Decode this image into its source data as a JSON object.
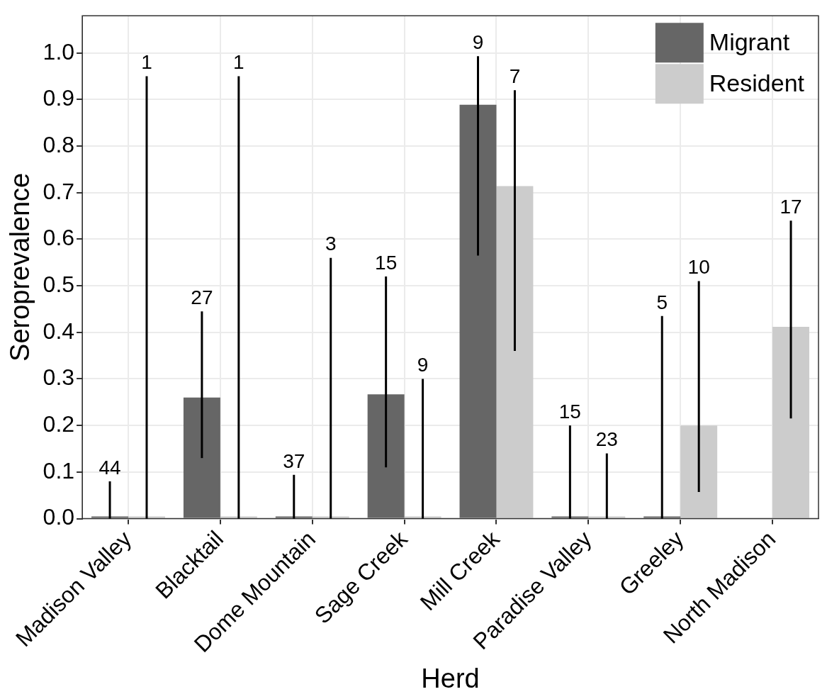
{
  "chart_data": {
    "type": "bar",
    "xlabel": "Herd",
    "ylabel": "Seroprevalence",
    "categories": [
      "Madison Valley",
      "Blacktail",
      "Dome Mountain",
      "Sage Creek",
      "Mill Creek",
      "Paradise Valley",
      "Greeley",
      "North Madison"
    ],
    "series": [
      {
        "name": "Migrant",
        "color": "#666666",
        "values": [
          0,
          0.26,
          0,
          0.267,
          0.889,
          0,
          0,
          null
        ],
        "errors": [
          [
            0,
            0.08
          ],
          [
            0.13,
            0.445
          ],
          [
            0,
            0.094
          ],
          [
            0.11,
            0.52
          ],
          [
            0.565,
            0.993
          ],
          [
            0,
            0.2
          ],
          [
            0,
            0.435
          ],
          null
        ]
      },
      {
        "name": "Resident",
        "color": "#cccccc",
        "values": [
          0,
          0,
          0,
          0,
          0.714,
          0,
          0.2,
          0.412
        ],
        "errors": [
          [
            0,
            0.95
          ],
          [
            0,
            0.95
          ],
          [
            0,
            0.56
          ],
          [
            0,
            0.3
          ],
          [
            0.36,
            0.92
          ],
          [
            0,
            0.14
          ],
          [
            0.057,
            0.51
          ],
          [
            0.215,
            0.64
          ]
        ]
      }
    ],
    "annotations": [
      "44",
      "1",
      "27",
      "1",
      "37",
      "3",
      "15",
      "9",
      "9",
      "7",
      "15",
      "23",
      "5",
      "10",
      "17"
    ],
    "ylim": [
      0,
      1.08
    ],
    "yticks": [
      {
        "value": 0,
        "label": "0.0"
      },
      0.1,
      0.2,
      0.3,
      0.4,
      0.5,
      0.6,
      0.7,
      0.8,
      0.9,
      {
        "value": 1,
        "label": "1.0"
      }
    ],
    "grid": true,
    "legend": "top right"
  }
}
